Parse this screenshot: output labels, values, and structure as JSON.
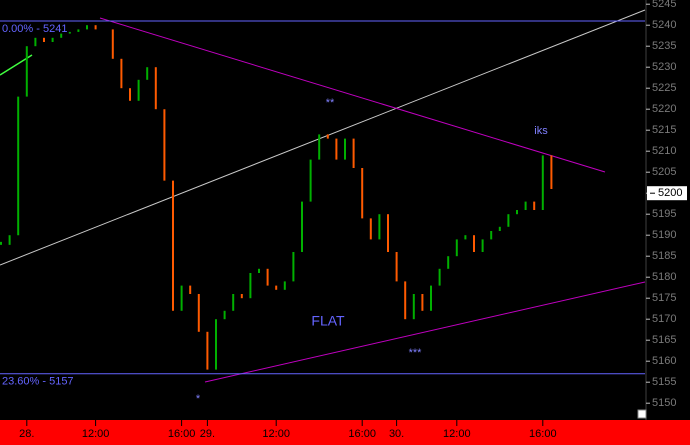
{
  "chart_data": {
    "type": "bar-ticks",
    "categories": [
      null,
      null,
      null,
      "28.",
      null,
      null,
      null,
      null,
      null,
      null,
      null,
      "12:00",
      null,
      null,
      null,
      null,
      null,
      null,
      null,
      null,
      null,
      "16:00",
      null,
      null,
      "29.",
      null,
      null,
      null,
      null,
      null,
      null,
      null,
      "12:00",
      null,
      null,
      null,
      null,
      null,
      null,
      null,
      null,
      null,
      "16:00",
      null,
      null,
      null,
      "30.",
      null,
      null,
      null,
      null,
      null,
      null,
      "12:00",
      null,
      null,
      null,
      null,
      null,
      null,
      null,
      null,
      null,
      "16:00",
      null
    ],
    "values": [
      5187.7,
      5190,
      5223,
      5235,
      5237,
      5236,
      5237,
      5238,
      5238.4,
      5239,
      5240,
      5239,
      5239,
      5232,
      5225,
      5222,
      5227,
      5230,
      5220,
      5203,
      5172,
      5178,
      5176,
      5167,
      5158,
      5170,
      5172,
      5176,
      5175,
      5181,
      5182,
      5178,
      5177,
      5179,
      5186,
      5198,
      5208,
      5214,
      5213,
      5208,
      5213,
      5206,
      5194,
      5189,
      5195,
      5186,
      5179,
      5170,
      5176,
      5172,
      5178,
      5182,
      5185,
      5189,
      5190,
      5186,
      5189,
      5191,
      5192,
      5195,
      5196,
      5198,
      5196,
      5209,
      5201
    ],
    "up_color": "#00b000",
    "down_color": "#ff5a00",
    "ylim": [
      5146,
      5246
    ],
    "yticks": [
      5150,
      5155,
      5160,
      5165,
      5170,
      5175,
      5180,
      5185,
      5190,
      5195,
      5200,
      5205,
      5210,
      5215,
      5220,
      5225,
      5230,
      5235,
      5240,
      5245
    ],
    "levels": [
      {
        "label": "0.00% - 5241",
        "value": 5241
      },
      {
        "label": "23.60% - 5157",
        "value": 5157
      }
    ],
    "level_color": "#6464ff",
    "last_price": 5200,
    "annotations": [
      "**",
      "iks",
      "FLAT",
      "***",
      "*"
    ]
  }
}
